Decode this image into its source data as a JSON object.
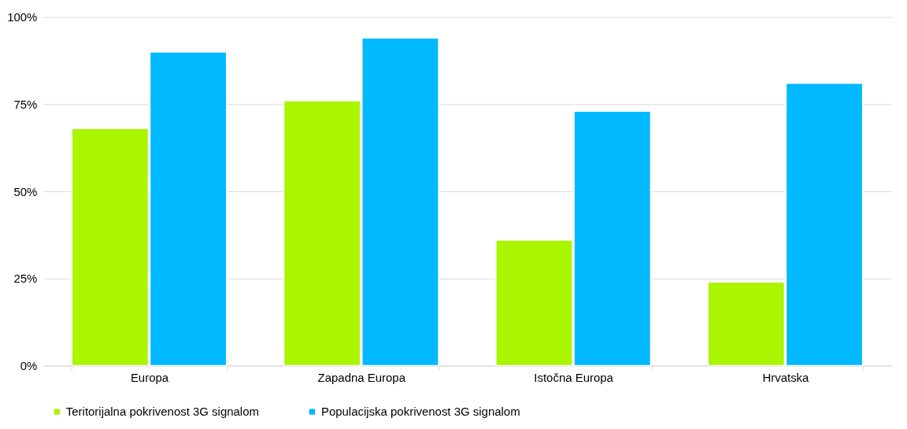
{
  "chart_data": {
    "type": "bar",
    "categories": [
      "Europa",
      "Zapadna Europa",
      "Istočna Europa",
      "Hrvatska"
    ],
    "series": [
      {
        "name": "Teritorijalna pokrivenost 3G signalom",
        "color": "#aaf500",
        "values": [
          68,
          76,
          36,
          24
        ]
      },
      {
        "name": "Populacijska pokrivenost 3G signalom",
        "color": "#00b9ff",
        "values": [
          90,
          94,
          73,
          81
        ]
      }
    ],
    "ylim": [
      0,
      100
    ],
    "yticks": [
      {
        "value": 0,
        "label": "0%"
      },
      {
        "value": 25,
        "label": "25%"
      },
      {
        "value": 50,
        "label": "50%"
      },
      {
        "value": 75,
        "label": "75%"
      },
      {
        "value": 100,
        "label": "100%"
      }
    ],
    "grid": "y",
    "legend": "bottom"
  }
}
